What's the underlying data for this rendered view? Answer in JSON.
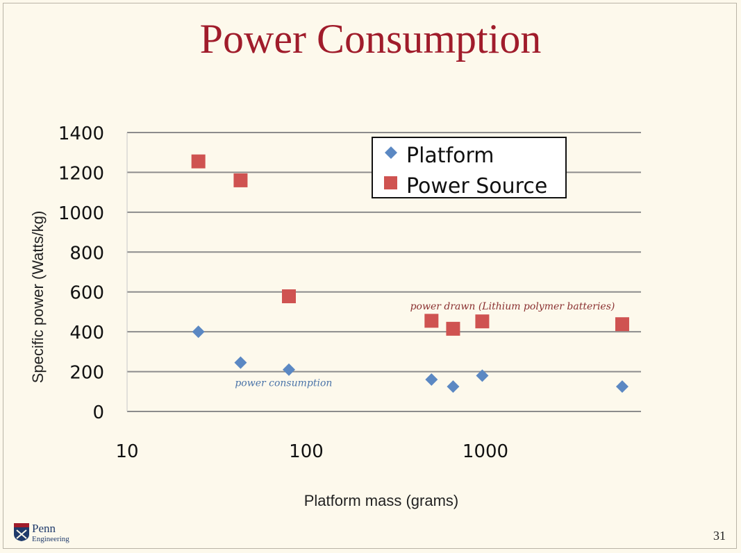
{
  "slide": {
    "title": "Power Consumption",
    "number": "31",
    "logo": {
      "line1": "Penn",
      "line2": "Engineering"
    }
  },
  "colors": {
    "title": "#a01c2b",
    "platform": "#5b88c3",
    "power_source": "#cf5351",
    "annotation_platform": "#4a73a8",
    "annotation_source": "#8a3030"
  },
  "chart_data": {
    "type": "scatter",
    "title": "",
    "xlabel": "Platform mass (grams)",
    "ylabel": "Specific power (Watts/kg)",
    "x_scale": "log",
    "xlim": [
      10,
      6000
    ],
    "ylim": [
      0,
      1400
    ],
    "x_ticks": [
      10,
      100,
      1000
    ],
    "y_ticks": [
      0,
      200,
      400,
      600,
      800,
      1000,
      1200,
      1400
    ],
    "grid": "horizontal",
    "legend": "top-right",
    "series": [
      {
        "name": "Platform",
        "marker": "diamond",
        "points": [
          [
            25,
            400
          ],
          [
            43,
            245
          ],
          [
            80,
            210
          ],
          [
            500,
            160
          ],
          [
            660,
            125
          ],
          [
            960,
            180
          ],
          [
            5800,
            125
          ]
        ]
      },
      {
        "name": "Power Source",
        "marker": "square",
        "points": [
          [
            25,
            1255
          ],
          [
            43,
            1160
          ],
          [
            80,
            578
          ],
          [
            500,
            455
          ],
          [
            660,
            415
          ],
          [
            960,
            452
          ],
          [
            5800,
            438
          ]
        ]
      }
    ],
    "annotations": [
      {
        "text": "power consumption",
        "x": 40,
        "y": 145,
        "series": "Platform"
      },
      {
        "text": "power drawn (Lithium polymer batteries)",
        "x": 380,
        "y": 530,
        "series": "Power Source"
      }
    ]
  }
}
